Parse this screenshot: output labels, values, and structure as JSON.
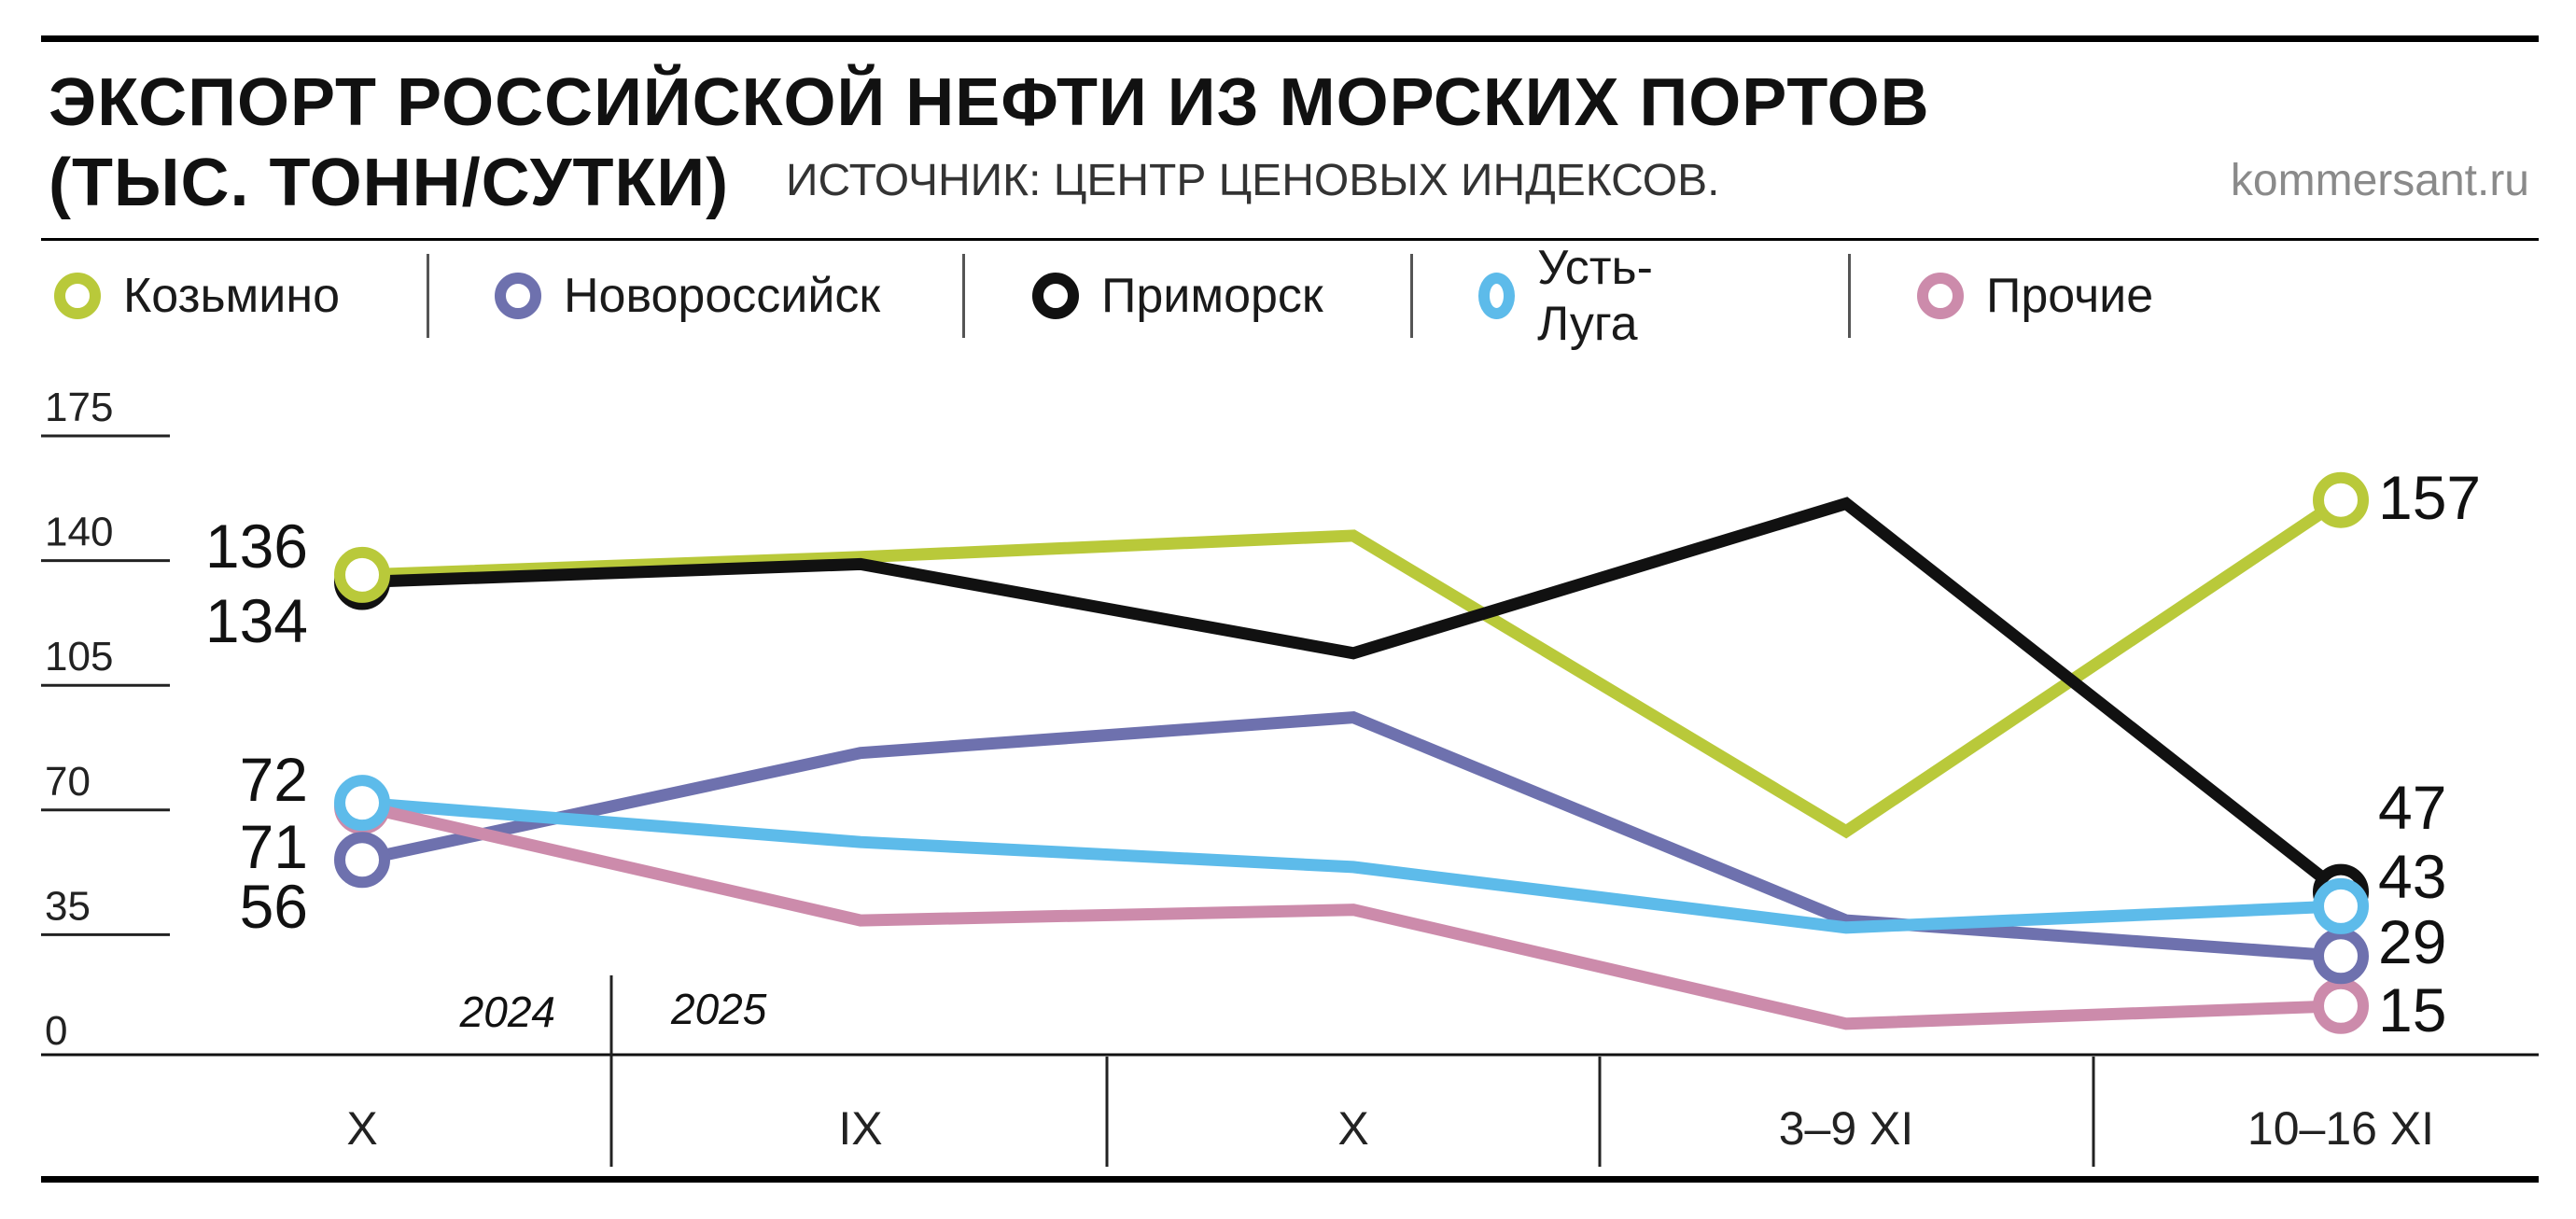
{
  "header": {
    "title_line1": "ЭКСПОРТ РОССИЙСКОЙ НЕФТИ ИЗ МОРСКИХ ПОРТОВ",
    "title_line2": "(ТЫС. ТОНН/СУТКИ)",
    "source": "ИСТОЧНИК: ЦЕНТР ЦЕНОВЫХ ИНДЕКСОВ.",
    "site": "kommersant.ru"
  },
  "chart_data": {
    "type": "line",
    "title": "ЭКСПОРТ РОССИЙСКОЙ НЕФТИ ИЗ МОРСКИХ ПОРТОВ (ТЫС. ТОНН/СУТКИ)",
    "categories": [
      "X",
      "IX",
      "X",
      "3–9 XI",
      "10–16 XI"
    ],
    "year_labels": [
      {
        "label": "2024",
        "from_index": 0,
        "to_index": 0
      },
      {
        "label": "2025",
        "from_index": 1,
        "to_index": 4
      }
    ],
    "ylim": [
      0,
      175
    ],
    "yticks": [
      "0",
      "35",
      "70",
      "105",
      "140",
      "175"
    ],
    "legend_position": "top",
    "series": [
      {
        "name": "Козьмино",
        "color": "#b9c93a",
        "values": [
          136,
          141,
          147,
          64,
          157
        ],
        "start_label": "136",
        "end_label": "157"
      },
      {
        "name": "Новороссийск",
        "color": "#6e71ae",
        "values": [
          56,
          86,
          96,
          39,
          29
        ],
        "start_label": "56",
        "end_label": "29"
      },
      {
        "name": "Приморск",
        "color": "#111111",
        "values": [
          134,
          139,
          114,
          156,
          47
        ],
        "start_label": "134",
        "end_label": "47"
      },
      {
        "name": "Усть-Луга",
        "color": "#5dbbea",
        "values": [
          72,
          61,
          54,
          37,
          43
        ],
        "start_label": "72",
        "end_label": "43"
      },
      {
        "name": "Прочие",
        "color": "#cc8bab",
        "values": [
          71,
          39,
          42,
          10,
          15
        ],
        "start_label": "71",
        "end_label": "15"
      }
    ]
  }
}
